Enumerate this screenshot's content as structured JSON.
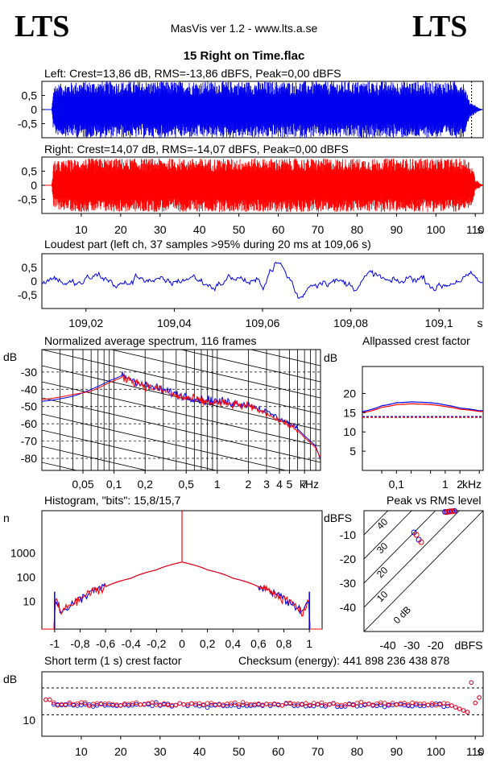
{
  "header": {
    "logo_left": "LTS",
    "logo_right": "LTS",
    "app": "MasVis ver 1.2 - www.lts.a.se",
    "file": "15 Right on Time.flac"
  },
  "colors": {
    "left": "#0000ee",
    "right": "#ff0000",
    "grid": "#000000"
  },
  "chart_data": [
    {
      "type": "area",
      "id": "left_wave",
      "title": "Left: Crest=13,86 dB, RMS=-13,86 dBFS, Peak=0,00 dBFS",
      "yticks": [
        "0,5",
        "0",
        "-0,5"
      ],
      "ylim": [
        -1,
        1
      ],
      "xlim": [
        0,
        112
      ],
      "envelope": {
        "x": [
          0,
          2.5,
          3,
          10,
          20,
          30,
          40,
          50,
          60,
          70,
          80,
          90,
          100,
          107,
          108.5,
          109.5,
          110,
          111,
          112
        ],
        "peak": [
          0,
          0,
          0.9,
          1,
          1,
          1,
          1,
          1,
          1,
          1,
          1,
          1,
          1,
          1,
          0.3,
          0.2,
          0.15,
          0.05,
          0
        ]
      }
    },
    {
      "type": "area",
      "id": "right_wave",
      "title": "Right: Crest=14,07 dB, RMS=-14,07 dBFS, Peak=0,00 dBFS",
      "yticks": [
        "0,5",
        "0",
        "-0,5"
      ],
      "ylim": [
        -1,
        1
      ],
      "xlim": [
        0,
        112
      ],
      "xticks": [
        "10",
        "20",
        "30",
        "40",
        "50",
        "60",
        "70",
        "80",
        "90",
        "100",
        "110"
      ],
      "xunit": "s",
      "envelope": {
        "x": [
          0,
          2.5,
          3,
          10,
          20,
          30,
          40,
          50,
          60,
          70,
          80,
          90,
          100,
          108,
          109.5,
          110,
          111,
          112
        ],
        "peak": [
          0,
          0,
          0.85,
          0.95,
          0.95,
          0.95,
          0.95,
          0.95,
          0.95,
          0.95,
          0.95,
          0.95,
          0.95,
          0.95,
          0.6,
          0.2,
          0.1,
          0
        ]
      }
    },
    {
      "type": "line",
      "id": "loudest",
      "title": "Loudest part (left  ch, 37 samples >95% during 20 ms at 109,06 s)",
      "yticks": [
        "0,5",
        "0",
        "-0,5"
      ],
      "ylim": [
        -1,
        1
      ],
      "xlim": [
        109.01,
        109.11
      ],
      "xticks": [
        "109,02",
        "109,04",
        "109,06",
        "109,08",
        "109,1"
      ],
      "xunit": "s"
    },
    {
      "type": "line",
      "id": "spectrum",
      "title": "Normalized average spectrum, 116 frames",
      "ylabel": "dB",
      "yticks": [
        "-30",
        "-40",
        "-50",
        "-60",
        "-70",
        "-80"
      ],
      "ylim": [
        -87,
        -17
      ],
      "xticks": [
        "0,05",
        "0,1",
        "0,2",
        "0,5",
        "1",
        "2",
        "3",
        "4",
        "5",
        "7"
      ],
      "xunit": "kHz",
      "x": [
        0.02,
        0.04,
        0.06,
        0.09,
        0.12,
        0.2,
        0.4,
        0.7,
        1,
        2,
        3,
        4,
        5,
        6,
        7,
        9,
        10
      ],
      "series": [
        {
          "values": [
            -47,
            -44,
            -40,
            -35,
            -32,
            -38,
            -43,
            -46,
            -47,
            -49,
            -53,
            -57,
            -60,
            -63,
            -67,
            -73,
            -81
          ]
        },
        {
          "values": [
            -46,
            -43,
            -41,
            -36,
            -33,
            -38,
            -44,
            -47,
            -48,
            -50,
            -54,
            -58,
            -61,
            -64,
            -68,
            -74,
            -80
          ]
        }
      ]
    },
    {
      "type": "line",
      "id": "allpass",
      "title": "Allpassed crest factor",
      "ylabel": "dB",
      "yticks": [
        "20",
        "15",
        "10",
        "5"
      ],
      "ylim": [
        0,
        27
      ],
      "xticks": [
        "0,1",
        "1",
        "2"
      ],
      "xunit": "kHz",
      "x": [
        0.02,
        0.05,
        0.1,
        0.2,
        0.5,
        1,
        2,
        5
      ],
      "series": [
        {
          "values": [
            15.3,
            16.8,
            17.6,
            17.8,
            17.6,
            17.0,
            16.2,
            15.5
          ]
        },
        {
          "values": [
            15.0,
            16.4,
            17.1,
            17.3,
            17.1,
            16.6,
            15.9,
            15.3
          ]
        }
      ],
      "reference": 14
    },
    {
      "type": "line",
      "id": "histogram",
      "title": "Histogram, \"bits\": 15,8/15,7",
      "ylabel": "n",
      "yticks": [
        "1000",
        "100",
        "10"
      ],
      "xticks": [
        "-1",
        "-0,8",
        "-0,6",
        "-0,4",
        "-0,2",
        "0",
        "0,2",
        "0,4",
        "0,6",
        "0,8",
        "1"
      ],
      "xlim": [
        -1.1,
        1.1
      ],
      "shape": {
        "x": [
          -1,
          -0.95,
          -0.8,
          -0.6,
          -0.4,
          -0.2,
          0,
          0.2,
          0.4,
          0.6,
          0.8,
          0.95,
          1
        ],
        "n": [
          12,
          3,
          12,
          40,
          90,
          200,
          420,
          200,
          90,
          40,
          12,
          3,
          12
        ]
      }
    },
    {
      "type": "scatter",
      "id": "peak_rms",
      "title": "Peak vs RMS level",
      "ylabel": "dBFS",
      "xunit": "dBFS",
      "yticks": [
        "-10",
        "-20",
        "-30",
        "-40"
      ],
      "xticks": [
        "-40",
        "-30",
        "-20"
      ],
      "lines": [
        "40",
        "30",
        "20",
        "10",
        "0 dB"
      ],
      "series": [
        {
          "x": [
            -29,
            -27,
            -16,
            -15,
            -14,
            -13,
            -12
          ],
          "y": [
            -9,
            -12,
            -0.5,
            -0.5,
            -0.3,
            -0.2,
            -0.1
          ]
        },
        {
          "x": [
            -28,
            -26,
            -15.5,
            -14.5,
            -13.5,
            -12.5
          ],
          "y": [
            -10,
            -13,
            -0.6,
            -0.4,
            -0.3,
            -0.2
          ]
        }
      ]
    },
    {
      "type": "scatter",
      "id": "short_crest",
      "title": "Short term (1 s) crest factor",
      "ylabel": "dB",
      "yticks": [
        "10"
      ],
      "xticks": [
        "10",
        "20",
        "30",
        "40",
        "50",
        "60",
        "70",
        "80",
        "90",
        "100",
        "110"
      ],
      "xunit": "s"
    }
  ],
  "checksum": "Checksum (energy):   441 898 236 438 878"
}
